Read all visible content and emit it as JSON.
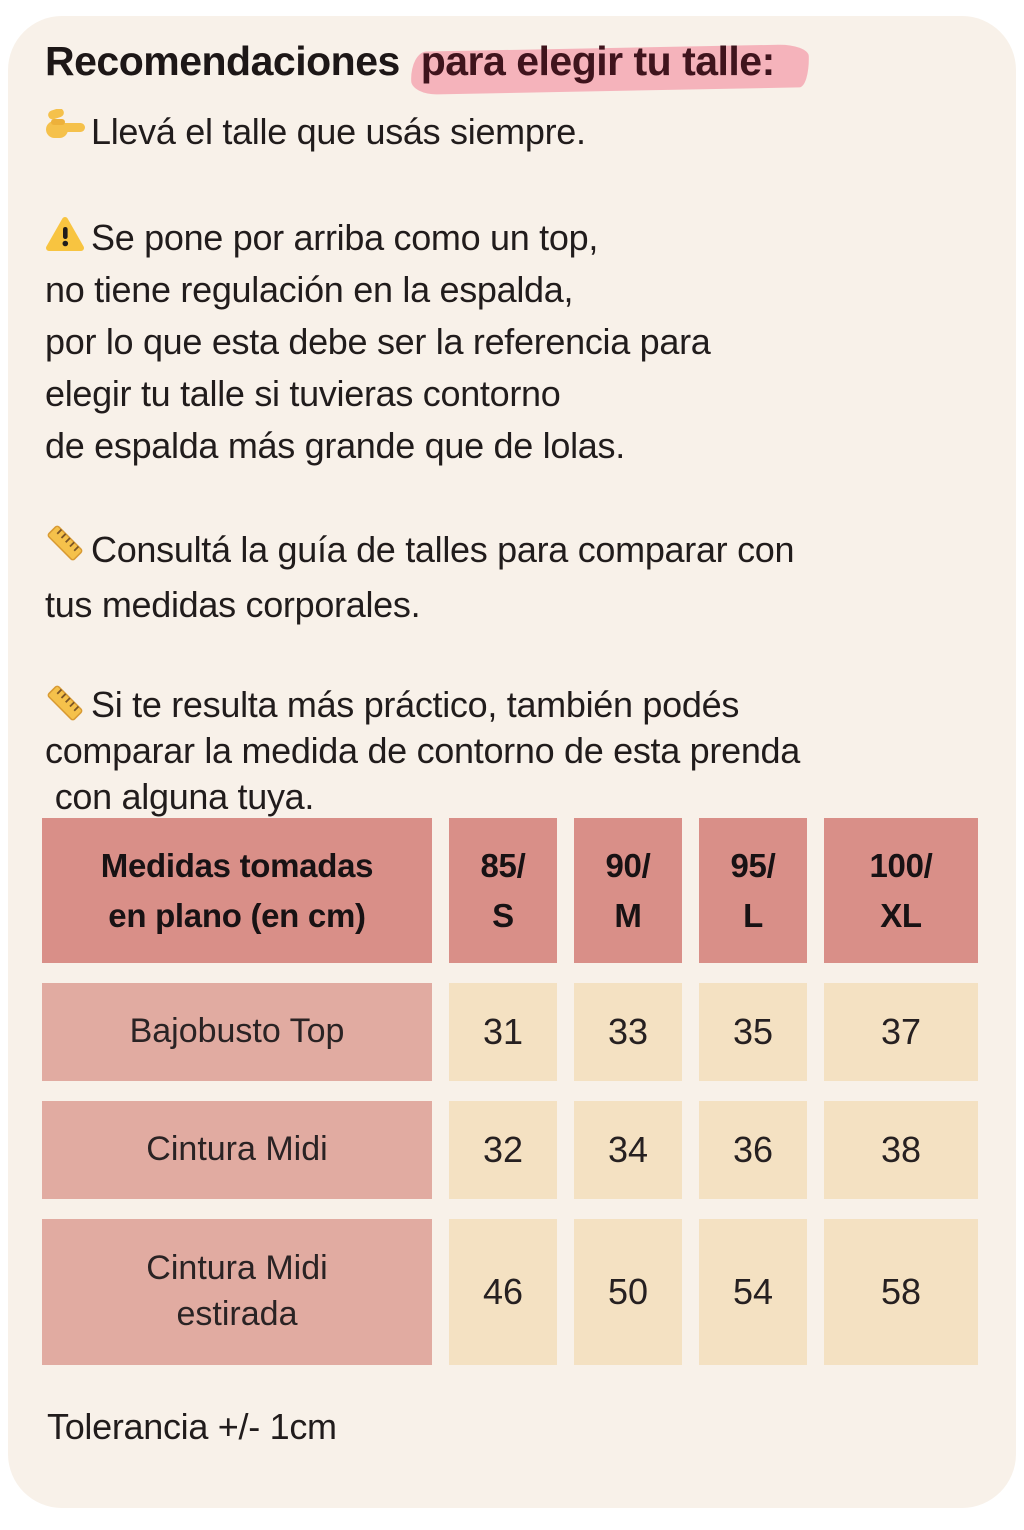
{
  "card": {
    "background": "#F8F1E9"
  },
  "title": {
    "text_black": "Recomendaciones",
    "text_highlighted": "para elegir tu talle:",
    "highlight_color": "#F5B3BB",
    "highlighted_text_color": "#3F141D"
  },
  "tips": [
    {
      "icon": "pointing-right-hand-icon",
      "lines": [
        "Llevá el talle que usás siempre."
      ]
    },
    {
      "icon": "warning-icon",
      "lines": [
        "Se pone por arriba como un top,",
        "no tiene regulación en la espalda,",
        "por lo que esta debe ser la referencia para",
        "elegir tu talle si tuvieras contorno",
        "de espalda más grande que de lolas."
      ]
    },
    {
      "icon": "ruler-icon",
      "lines": [
        "Consultá la guía de talles para comparar con",
        "tus medidas corporales."
      ]
    },
    {
      "icon": "ruler-icon",
      "lines": [
        "Si te resulta más práctico, también podés",
        "comparar la medida de contorno de esta prenda",
        " con alguna tuya."
      ]
    }
  ],
  "size_table": {
    "header": {
      "label": "Medidas tomadas en plano (en cm)",
      "label_lines": [
        "Medidas tomadas",
        "en plano (en cm)"
      ],
      "sizes": [
        {
          "line1": "85/",
          "line2": "S"
        },
        {
          "line1": "90/",
          "line2": "M"
        },
        {
          "line1": "95/",
          "line2": "L"
        },
        {
          "line1": "100/",
          "line2": "XL"
        }
      ]
    },
    "rows": [
      {
        "label_lines": [
          "Bajobusto Top"
        ],
        "values": [
          "31",
          "33",
          "35",
          "37"
        ]
      },
      {
        "label_lines": [
          "Cintura Midi"
        ],
        "values": [
          "32",
          "34",
          "36",
          "38"
        ]
      },
      {
        "label_lines": [
          "Cintura Midi",
          "estirada"
        ],
        "values": [
          "46",
          "50",
          "54",
          "58"
        ]
      }
    ],
    "colors": {
      "header_cell": "#D98F88",
      "label_cell": "#E1ABA1",
      "value_cell": "#F4E1C2"
    }
  },
  "footnote": "Tolerancia +/- 1cm"
}
